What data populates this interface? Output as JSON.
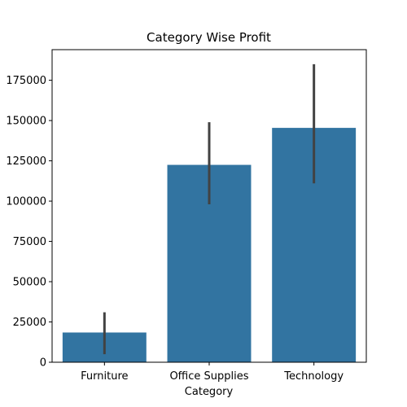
{
  "chart_data": {
    "type": "bar",
    "title": "Category Wise Profit",
    "xlabel": "Category",
    "ylabel": "",
    "categories": [
      "Furniture",
      "Office Supplies",
      "Technology"
    ],
    "values": [
      18451,
      122491,
      145455
    ],
    "error_bars": [
      {
        "low": 5000,
        "high": 31000
      },
      {
        "low": 98000,
        "high": 149000
      },
      {
        "low": 111000,
        "high": 185000
      }
    ],
    "ylim": [
      0,
      194000
    ],
    "yticks": [
      0,
      25000,
      50000,
      75000,
      100000,
      125000,
      150000,
      175000
    ],
    "bar_color": "#3274a1",
    "error_color": "#424242",
    "grid": false,
    "legend": false
  }
}
